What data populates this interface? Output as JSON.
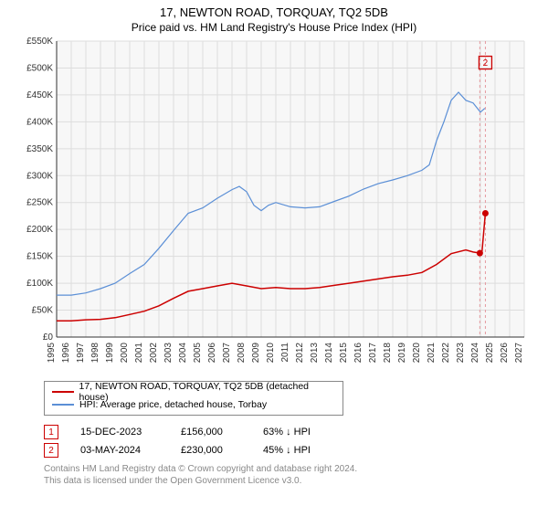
{
  "title": "17, NEWTON ROAD, TORQUAY, TQ2 5DB",
  "subtitle": "Price paid vs. HM Land Registry's House Price Index (HPI)",
  "chart": {
    "plot_bg": "#f7f7f7",
    "grid_color": "#dddddd",
    "axis_color": "#333333",
    "axis_font_size": 10,
    "y_label_prefix": "£",
    "ylim": [
      0,
      550
    ],
    "yticks": [
      0,
      50,
      100,
      150,
      200,
      250,
      300,
      350,
      400,
      450,
      500,
      550
    ],
    "ytick_labels": [
      "£0",
      "£50K",
      "£100K",
      "£150K",
      "£200K",
      "£250K",
      "£300K",
      "£350K",
      "£400K",
      "£450K",
      "£500K",
      "£550K"
    ],
    "xlim": [
      1995,
      2027
    ],
    "xticks": [
      1995,
      1996,
      1997,
      1998,
      1999,
      2000,
      2001,
      2002,
      2003,
      2004,
      2005,
      2006,
      2007,
      2008,
      2009,
      2010,
      2011,
      2012,
      2013,
      2014,
      2015,
      2016,
      2017,
      2018,
      2019,
      2020,
      2021,
      2022,
      2023,
      2024,
      2025,
      2026,
      2027
    ],
    "series": [
      {
        "name": "17, NEWTON ROAD, TORQUAY, TQ2 5DB (detached house)",
        "color": "#cc0000",
        "width": 1.5,
        "points": [
          [
            1995,
            30
          ],
          [
            1996,
            30
          ],
          [
            1997,
            32
          ],
          [
            1998,
            33
          ],
          [
            1999,
            36
          ],
          [
            2000,
            42
          ],
          [
            2001,
            48
          ],
          [
            2002,
            58
          ],
          [
            2003,
            72
          ],
          [
            2004,
            85
          ],
          [
            2005,
            90
          ],
          [
            2006,
            95
          ],
          [
            2007,
            100
          ],
          [
            2008,
            95
          ],
          [
            2009,
            90
          ],
          [
            2010,
            92
          ],
          [
            2011,
            90
          ],
          [
            2012,
            90
          ],
          [
            2013,
            92
          ],
          [
            2014,
            96
          ],
          [
            2015,
            100
          ],
          [
            2016,
            104
          ],
          [
            2017,
            108
          ],
          [
            2018,
            112
          ],
          [
            2019,
            115
          ],
          [
            2020,
            120
          ],
          [
            2021,
            135
          ],
          [
            2022,
            155
          ],
          [
            2023,
            162
          ],
          [
            2023.5,
            158
          ],
          [
            2023.96,
            156
          ],
          [
            2024.1,
            156
          ],
          [
            2024.34,
            230
          ]
        ]
      },
      {
        "name": "HPI: Average price, detached house, Torbay",
        "color": "#5b8fd6",
        "width": 1.2,
        "points": [
          [
            1995,
            78
          ],
          [
            1996,
            78
          ],
          [
            1997,
            82
          ],
          [
            1998,
            90
          ],
          [
            1999,
            100
          ],
          [
            2000,
            118
          ],
          [
            2001,
            135
          ],
          [
            2002,
            165
          ],
          [
            2003,
            198
          ],
          [
            2004,
            230
          ],
          [
            2005,
            240
          ],
          [
            2006,
            258
          ],
          [
            2007,
            274
          ],
          [
            2007.5,
            280
          ],
          [
            2008,
            270
          ],
          [
            2008.5,
            245
          ],
          [
            2009,
            235
          ],
          [
            2009.5,
            245
          ],
          [
            2010,
            250
          ],
          [
            2011,
            242
          ],
          [
            2012,
            240
          ],
          [
            2013,
            242
          ],
          [
            2014,
            252
          ],
          [
            2015,
            262
          ],
          [
            2016,
            275
          ],
          [
            2017,
            285
          ],
          [
            2018,
            292
          ],
          [
            2019,
            300
          ],
          [
            2020,
            310
          ],
          [
            2020.5,
            320
          ],
          [
            2021,
            365
          ],
          [
            2021.5,
            400
          ],
          [
            2022,
            440
          ],
          [
            2022.5,
            455
          ],
          [
            2023,
            440
          ],
          [
            2023.5,
            435
          ],
          [
            2024,
            418
          ],
          [
            2024.3,
            425
          ]
        ]
      }
    ],
    "markers": [
      {
        "num": "1",
        "x": 2023.96,
        "y": 156,
        "color": "#cc0000",
        "dash_color": "#e59aa0"
      },
      {
        "num": "2",
        "x": 2024.34,
        "y": 230,
        "color": "#cc0000",
        "dash_color": "#e59aa0",
        "box_y": 510,
        "box_color": "#cc0000"
      }
    ]
  },
  "legend": [
    {
      "label": "17, NEWTON ROAD, TORQUAY, TQ2 5DB (detached house)",
      "color": "#cc0000"
    },
    {
      "label": "HPI: Average price, detached house, Torbay",
      "color": "#5b8fd6"
    }
  ],
  "records": [
    {
      "num": "1",
      "color": "#cc0000",
      "date": "15-DEC-2023",
      "price": "£156,000",
      "diff": "63% ↓ HPI"
    },
    {
      "num": "2",
      "color": "#cc0000",
      "date": "03-MAY-2024",
      "price": "£230,000",
      "diff": "45% ↓ HPI"
    }
  ],
  "footer": {
    "line1": "Contains HM Land Registry data © Crown copyright and database right 2024.",
    "line2": "This data is licensed under the Open Government Licence v3.0."
  }
}
